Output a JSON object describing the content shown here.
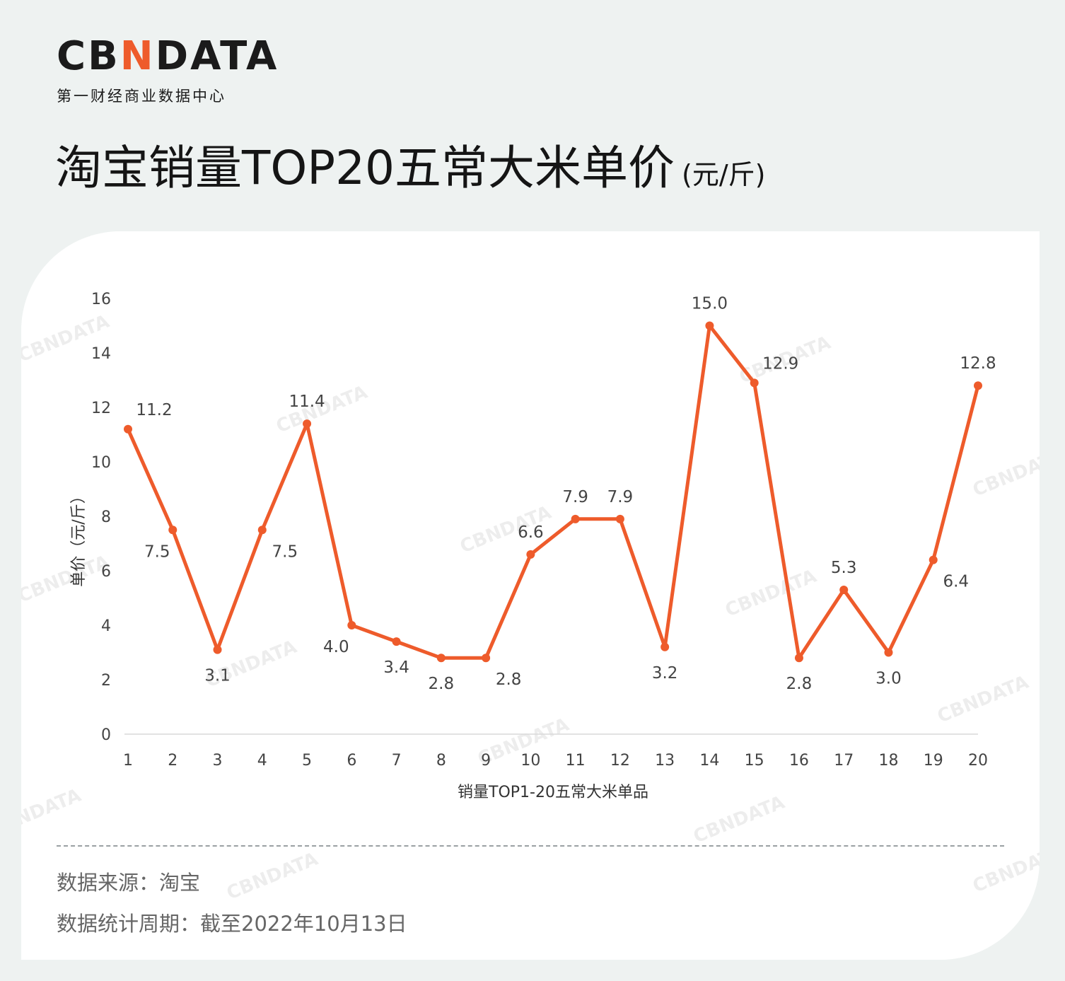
{
  "logo": {
    "pre": "CB",
    "accent": "N",
    "post": "DATA",
    "subtitle": "第一财经商业数据中心"
  },
  "page": {
    "title": "淘宝销量TOP20五常大米单价",
    "title_unit": "(元/斤)"
  },
  "footer": {
    "source": "数据来源：淘宝",
    "period": "数据统计周期：截至2022年10月13日"
  },
  "colors": {
    "accent": "#ee5b2b",
    "background": "#eef2f1",
    "card": "#ffffff"
  },
  "watermark": "CBNDATA",
  "chart_data": {
    "type": "line",
    "title": "",
    "xlabel": "销量TOP1-20五常大米单品",
    "ylabel": "单价（元/斤）",
    "ylim": [
      0,
      16
    ],
    "yticks": [
      0,
      2,
      4,
      6,
      8,
      10,
      12,
      14,
      16
    ],
    "grid": false,
    "categories": [
      "1",
      "2",
      "3",
      "4",
      "5",
      "6",
      "7",
      "8",
      "9",
      "10",
      "11",
      "12",
      "13",
      "14",
      "15",
      "16",
      "17",
      "18",
      "19",
      "20"
    ],
    "series": [
      {
        "color": "#ee5b2b",
        "values": [
          11.2,
          7.5,
          3.1,
          7.5,
          11.4,
          4.0,
          3.4,
          2.8,
          2.8,
          6.6,
          7.9,
          7.9,
          3.2,
          15.0,
          12.9,
          2.8,
          5.3,
          3.0,
          6.4,
          12.8
        ],
        "labels": [
          "11.2",
          "7.5",
          "3.1",
          "7.5",
          "11.4",
          "4.0",
          "3.4",
          "2.8",
          "2.8",
          "6.6",
          "7.9",
          "7.9",
          "3.2",
          "15.0",
          "12.9",
          "2.8",
          "5.3",
          "3.0",
          "6.4",
          "12.8"
        ]
      }
    ]
  }
}
